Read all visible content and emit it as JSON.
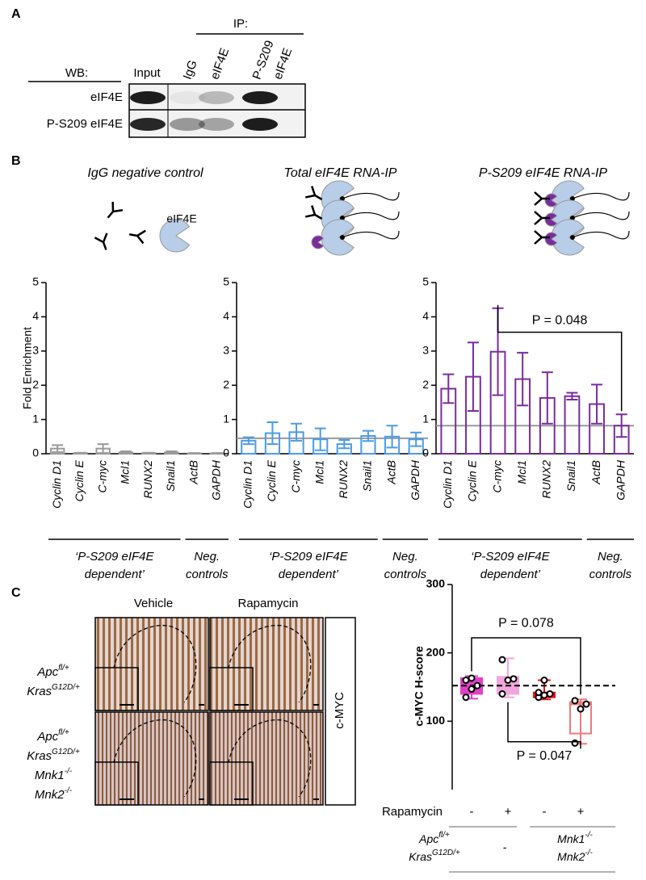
{
  "panel_a": {
    "label": "A",
    "ip_label": "IP:",
    "wb_label": "WB:",
    "input_label": "Input",
    "ip_lanes": [
      [
        "IgG"
      ],
      [
        "eIF4E"
      ],
      [
        "P-S209",
        "eIF4E"
      ]
    ],
    "rows": [
      "eIF4E",
      "P-S209 eIF4E"
    ]
  },
  "panel_b": {
    "label": "B",
    "icon_label": "eIF4E"
  },
  "panel_c": {
    "label": "C",
    "columns": [
      "Vehicle",
      "Rapamycin"
    ],
    "stain": "c-MYC",
    "rows": [
      {
        "color": "#e020c8",
        "lines": [
          {
            "text": "Apc",
            "sup": "fl/+"
          },
          {
            "text": "Kras",
            "sup": "G12D/+"
          }
        ]
      },
      {
        "color": "#ee1111",
        "lines": [
          {
            "text": "Apc",
            "sup": "fl/+"
          },
          {
            "text": "Kras",
            "sup": "G12D/+"
          },
          {
            "text": "Mnk1",
            "sup": "-/-"
          },
          {
            "text": "Mnk2",
            "sup": "-/-"
          }
        ]
      }
    ]
  },
  "chart_data": [
    {
      "type": "bar",
      "title": "IgG negative control",
      "ylabel": "Fold Enrichment",
      "categories": [
        "Cyclin D1",
        "Cyclin E",
        "C-myc",
        "Mcl1",
        "RUNX2",
        "Snail1",
        "ActB",
        "GAPDH"
      ],
      "values": [
        0.15,
        0.02,
        0.15,
        0.04,
        0.02,
        0.04,
        0.01,
        0.01
      ],
      "errors": [
        0.1,
        0.01,
        0.13,
        0.03,
        0.01,
        0.03,
        0.01,
        0.01
      ],
      "color": "#9a9a9a",
      "ylim": [
        0,
        5
      ],
      "yticks": [
        0,
        1,
        2,
        3,
        4,
        5
      ],
      "groups": [
        [
          "‘P-S209 eIF4E",
          "dependent’"
        ],
        [
          "Neg.",
          "controls"
        ]
      ]
    },
    {
      "type": "bar",
      "title": "Total eIF4E RNA-IP",
      "categories": [
        "Cyclin D1",
        "Cyclin E",
        "C-myc",
        "Mcl1",
        "RUNX2",
        "Snail1",
        "ActB",
        "GAPDH"
      ],
      "values": [
        0.38,
        0.6,
        0.63,
        0.42,
        0.28,
        0.52,
        0.5,
        0.42
      ],
      "errors": [
        0.1,
        0.32,
        0.25,
        0.32,
        0.12,
        0.15,
        0.32,
        0.2
      ],
      "color": "#4b9be8",
      "reference_line": 0.45,
      "ylim": [
        0,
        5
      ],
      "yticks": [
        0,
        1,
        2,
        3,
        4,
        5
      ],
      "groups": [
        [
          "‘P-S209 eIF4E",
          "dependent’"
        ],
        [
          "Neg.",
          "controls"
        ]
      ]
    },
    {
      "type": "bar",
      "title": "P-S209 eIF4E RNA-IP",
      "categories": [
        "Cyclin D1",
        "Cyclin E",
        "C-myc",
        "Mcl1",
        "RUNX2",
        "Snail1",
        "ActB",
        "GAPDH"
      ],
      "values": [
        1.9,
        2.25,
        2.98,
        2.18,
        1.63,
        1.68,
        1.45,
        0.82
      ],
      "errors": [
        0.42,
        1.0,
        1.27,
        0.77,
        0.75,
        0.1,
        0.57,
        0.33
      ],
      "color": "#7a2c9e",
      "reference_line": 0.82,
      "ylim": [
        0,
        5
      ],
      "yticks": [
        0,
        1,
        2,
        3,
        4,
        5
      ],
      "annotations": [
        {
          "text": "P = 0.048",
          "y": 3.55
        }
      ],
      "groups": [
        [
          "‘P-S209 eIF4E",
          "dependent’"
        ],
        [
          "Neg.",
          "controls"
        ]
      ]
    },
    {
      "type": "box",
      "ylabel": "c-MYC H-score",
      "ylim": [
        0,
        300
      ],
      "yticks": [
        100,
        200,
        300
      ],
      "reference_line": 152,
      "groups": [
        {
          "color": "#e040c8",
          "whisker_low": 133,
          "q1": 140,
          "median": 150,
          "q3": 163,
          "whisker_high": 166,
          "points": [
            135,
            147,
            152,
            160,
            163
          ]
        },
        {
          "color": "#f2a6dc",
          "whisker_low": 135,
          "q1": 140,
          "median": 158,
          "q3": 165,
          "whisker_high": 192,
          "points": [
            140,
            160,
            162,
            190
          ]
        },
        {
          "color": "#ee1111",
          "whisker_low": 132,
          "q1": 135,
          "median": 140,
          "q3": 142,
          "whisker_high": 160,
          "points": [
            135,
            138,
            140,
            142,
            160
          ]
        },
        {
          "color": "#f07878",
          "whisker_low": 67,
          "q1": 82,
          "median": 125,
          "q3": 128,
          "whisker_high": 132,
          "points": [
            68,
            118,
            125,
            130
          ]
        }
      ],
      "annotations": [
        {
          "text": "P = 0.078",
          "y": 222
        },
        {
          "text": "P = 0.047",
          "y": 70
        }
      ],
      "treatment_label": "Rapamycin",
      "treatment": [
        "-",
        "+",
        "-",
        "+"
      ],
      "genotypes": [
        {
          "color": "#e47ad8",
          "lines": [
            {
              "text": "Apc",
              "sup": "fl/+"
            },
            {
              "text": "Kras",
              "sup": "G12D/+"
            }
          ]
        },
        {
          "color": "#e47ad8",
          "lines": [
            {
              "text": "-"
            }
          ]
        },
        {
          "color": "#ee1111",
          "lines": [
            {
              "text": "Mnk1",
              "sup": "-/-"
            },
            {
              "text": "Mnk2",
              "sup": "-/-"
            }
          ]
        }
      ]
    }
  ]
}
